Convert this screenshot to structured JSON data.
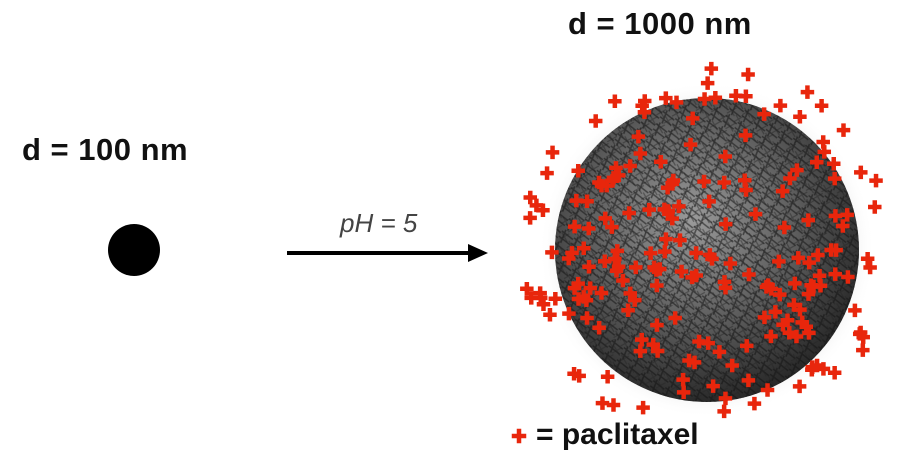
{
  "diagram": {
    "small_particle_label": "d = 100 nm",
    "large_particle_label": "d = 1000 nm",
    "arrow_label": "pH = 5",
    "legend_label": "= paclitaxel"
  },
  "colors": {
    "particle": "#000000",
    "drug_marker": "#e8260c",
    "arrow": "#000000"
  }
}
